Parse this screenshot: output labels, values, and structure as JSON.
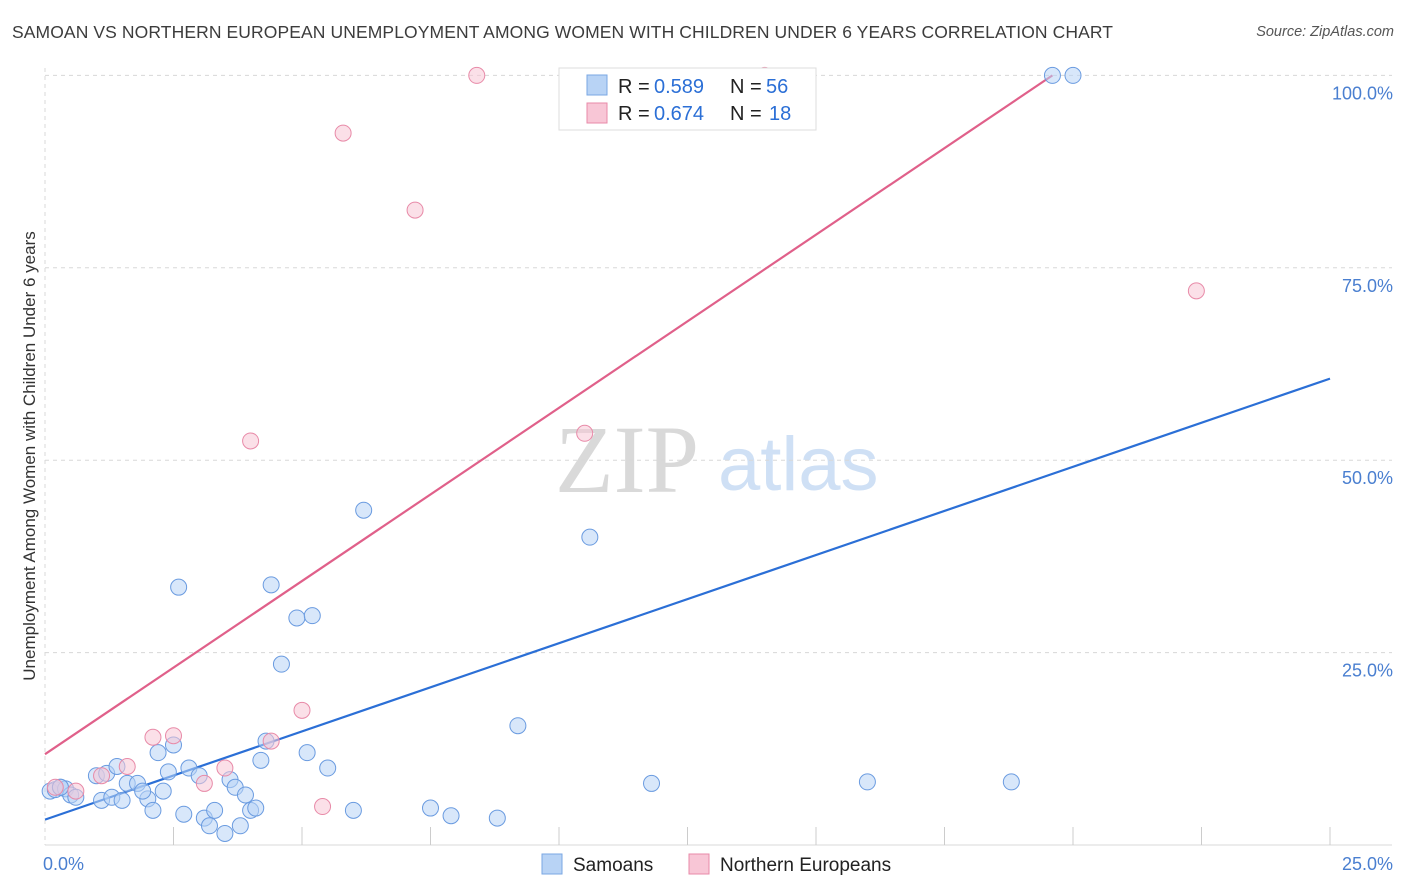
{
  "header": {
    "title": "SAMOAN VS NORTHERN EUROPEAN UNEMPLOYMENT AMONG WOMEN WITH CHILDREN UNDER 6 YEARS CORRELATION CHART",
    "source": "Source: ZipAtlas.com"
  },
  "watermark": {
    "part1": "ZIP",
    "part2": "atlas"
  },
  "legend": {
    "items": [
      {
        "r_label": "R =",
        "r_value": "0.589",
        "n_label": "N =",
        "n_value": "56",
        "color": "#b8d3f5"
      },
      {
        "r_label": "R =",
        "r_value": "0.674",
        "n_label": "N =",
        "n_value": "18",
        "color": "#f8c6d6"
      }
    ]
  },
  "bottom_legend": {
    "items": [
      {
        "label": "Samoans",
        "color": "#b8d3f5"
      },
      {
        "label": "Northern Europeans",
        "color": "#f8c6d6"
      }
    ]
  },
  "chart_data": {
    "type": "scatter",
    "title": "SAMOAN VS NORTHERN EUROPEAN UNEMPLOYMENT AMONG WOMEN WITH CHILDREN UNDER 6 YEARS CORRELATION CHART",
    "xlabel": "",
    "ylabel": "Unemployment Among Women with Children Under 6 years",
    "xlim": [
      0,
      25
    ],
    "ylim": [
      0,
      102
    ],
    "x_tick_labels": [
      "0.0%",
      "25.0%"
    ],
    "x_ticks": [
      0,
      25
    ],
    "y_tick_labels": [
      "25.0%",
      "50.0%",
      "75.0%",
      "100.0%"
    ],
    "y_ticks": [
      25,
      50,
      75,
      100
    ],
    "grid": true,
    "legend_position": "top-center",
    "series": [
      {
        "name": "Samoans",
        "color": "#b8d3f5",
        "stroke": "#6a9be0",
        "trend_color": "#2b6fd6",
        "trend": {
          "x": [
            0,
            25
          ],
          "y": [
            3.3,
            60.6
          ]
        },
        "points": [
          [
            0.1,
            7.0
          ],
          [
            0.2,
            7.2
          ],
          [
            0.3,
            7.5
          ],
          [
            0.4,
            7.3
          ],
          [
            0.5,
            6.5
          ],
          [
            0.6,
            6.2
          ],
          [
            1.0,
            9.0
          ],
          [
            1.1,
            5.8
          ],
          [
            1.2,
            9.3
          ],
          [
            1.3,
            6.2
          ],
          [
            1.4,
            10.2
          ],
          [
            1.5,
            5.8
          ],
          [
            1.6,
            8.0
          ],
          [
            1.8,
            8.0
          ],
          [
            2.0,
            6.0
          ],
          [
            1.9,
            7.0
          ],
          [
            2.1,
            4.5
          ],
          [
            2.3,
            7.0
          ],
          [
            2.2,
            12.0
          ],
          [
            2.4,
            9.5
          ],
          [
            2.6,
            33.5
          ],
          [
            2.5,
            13.0
          ],
          [
            2.7,
            4.0
          ],
          [
            2.8,
            10.0
          ],
          [
            3.0,
            9.0
          ],
          [
            3.1,
            3.5
          ],
          [
            3.2,
            2.5
          ],
          [
            3.3,
            4.5
          ],
          [
            3.5,
            1.5
          ],
          [
            3.6,
            8.5
          ],
          [
            3.7,
            7.5
          ],
          [
            3.8,
            2.5
          ],
          [
            3.9,
            6.5
          ],
          [
            4.0,
            4.5
          ],
          [
            4.1,
            4.8
          ],
          [
            4.2,
            11.0
          ],
          [
            4.3,
            13.5
          ],
          [
            4.4,
            33.8
          ],
          [
            4.6,
            23.5
          ],
          [
            4.9,
            29.5
          ],
          [
            5.2,
            29.8
          ],
          [
            5.1,
            12.0
          ],
          [
            5.5,
            10.0
          ],
          [
            6.0,
            4.5
          ],
          [
            6.2,
            43.5
          ],
          [
            7.5,
            4.8
          ],
          [
            7.9,
            3.8
          ],
          [
            8.8,
            3.5
          ],
          [
            9.2,
            15.5
          ],
          [
            10.6,
            40.0
          ],
          [
            11.8,
            8.0
          ],
          [
            16.0,
            8.2
          ],
          [
            18.8,
            8.2
          ],
          [
            19.6,
            100.0
          ],
          [
            20.0,
            100.0
          ],
          [
            0.3,
            7.5
          ]
        ]
      },
      {
        "name": "Northern Europeans",
        "color": "#f8c6d6",
        "stroke": "#e88aa8",
        "trend_color": "#e0608a",
        "trend": {
          "x": [
            0,
            19.6
          ],
          "y": [
            11.8,
            100.0
          ]
        },
        "points": [
          [
            0.2,
            7.5
          ],
          [
            0.6,
            7.0
          ],
          [
            1.1,
            9.0
          ],
          [
            1.6,
            10.2
          ],
          [
            2.1,
            14.0
          ],
          [
            2.5,
            14.2
          ],
          [
            3.1,
            8.0
          ],
          [
            3.5,
            10.0
          ],
          [
            4.0,
            52.5
          ],
          [
            4.4,
            13.5
          ],
          [
            5.0,
            17.5
          ],
          [
            5.4,
            5.0
          ],
          [
            5.8,
            92.5
          ],
          [
            7.2,
            82.5
          ],
          [
            8.4,
            100.0
          ],
          [
            10.5,
            53.5
          ],
          [
            14.0,
            100.0
          ],
          [
            22.4,
            72.0
          ]
        ]
      }
    ]
  }
}
